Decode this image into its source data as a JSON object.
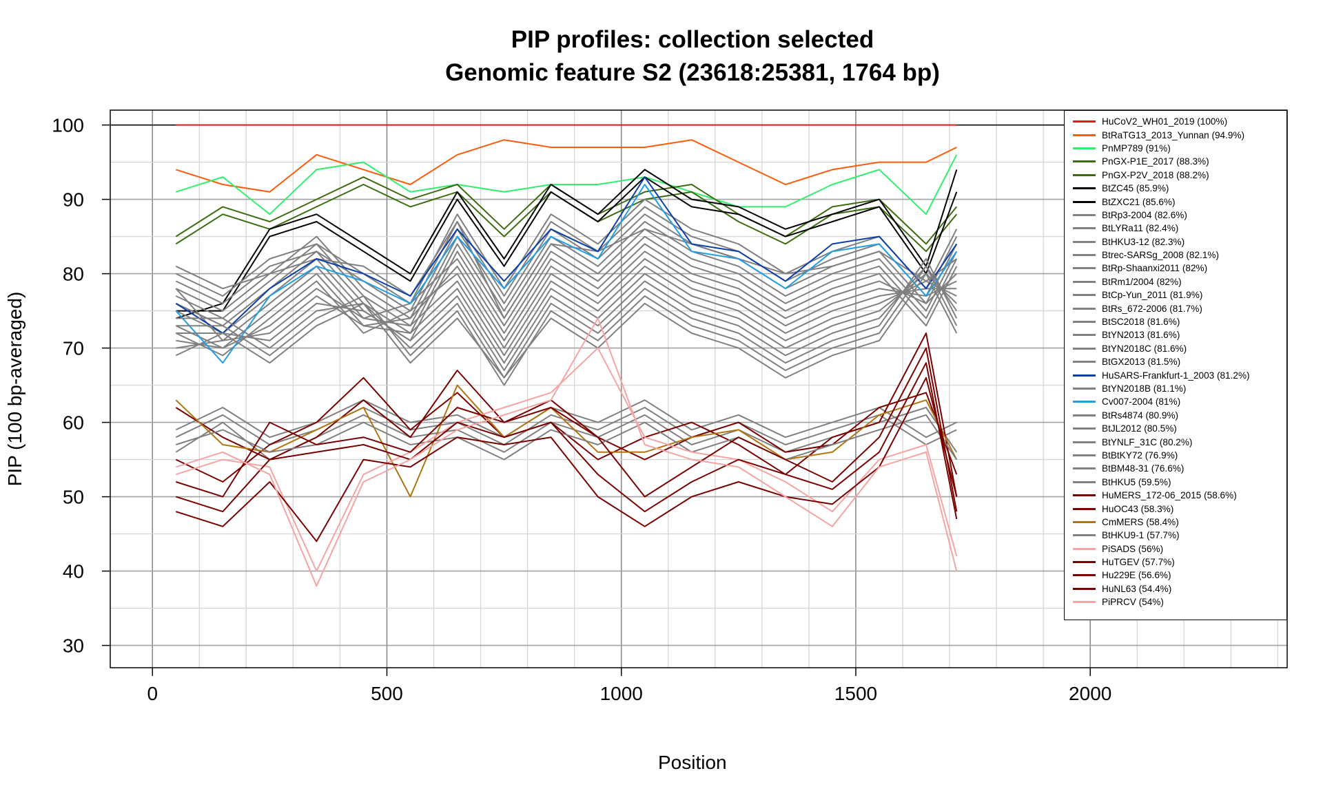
{
  "chart_data": {
    "type": "line",
    "title": "PIP profiles: collection selected",
    "subtitle": "Genomic feature S2 (23618:25381, 1764 bp)",
    "xlabel": "Position",
    "ylabel": "PIP (100 bp-averaged)",
    "xlim": [
      -90,
      2420
    ],
    "ylim": [
      27,
      102
    ],
    "xticks": [
      0,
      500,
      1000,
      1500,
      2000
    ],
    "yticks": [
      30,
      40,
      50,
      60,
      70,
      80,
      90,
      100
    ],
    "grid": true,
    "legend_position": "top-right",
    "x": [
      50,
      150,
      250,
      350,
      450,
      550,
      650,
      750,
      850,
      950,
      1050,
      1150,
      1250,
      1350,
      1450,
      1550,
      1650,
      1715
    ],
    "series": [
      {
        "name": "HuCoV2_WH01_2019 (100%)",
        "color": "#e31a1c",
        "values": [
          100,
          100,
          100,
          100,
          100,
          100,
          100,
          100,
          100,
          100,
          100,
          100,
          100,
          100,
          100,
          100,
          100,
          100
        ]
      },
      {
        "name": "BtRaTG13_2013_Yunnan (94.9%)",
        "color": "#ff5a0a",
        "values": [
          94,
          92,
          91,
          96,
          94,
          92,
          96,
          98,
          97,
          97,
          97,
          98,
          95,
          92,
          94,
          95,
          95,
          97
        ]
      },
      {
        "name": "PnMP789 (91%)",
        "color": "#2ef06b",
        "values": [
          91,
          93,
          88,
          94,
          95,
          91,
          92,
          91,
          92,
          92,
          93,
          91,
          89,
          89,
          92,
          94,
          88,
          96
        ]
      },
      {
        "name": "PnGX-P1E_2017 (88.3%)",
        "color": "#3c6b10",
        "values": [
          85,
          89,
          87,
          90,
          93,
          90,
          92,
          86,
          92,
          88,
          91,
          92,
          88,
          85,
          89,
          90,
          84,
          89
        ]
      },
      {
        "name": "PnGX-P2V_2018 (88.2%)",
        "color": "#3c6b10",
        "values": [
          84,
          88,
          86,
          89,
          92,
          89,
          91,
          85,
          91,
          87,
          90,
          91,
          87,
          84,
          88,
          89,
          83,
          88
        ]
      },
      {
        "name": "BtZC45 (85.9%)",
        "color": "#000000",
        "values": [
          74,
          76,
          86,
          88,
          84,
          80,
          91,
          82,
          92,
          88,
          94,
          90,
          89,
          86,
          88,
          90,
          81,
          94
        ]
      },
      {
        "name": "BtZXC21 (85.6%)",
        "color": "#000000",
        "values": [
          75,
          75,
          85,
          87,
          83,
          79,
          90,
          81,
          91,
          87,
          93,
          89,
          88,
          85,
          87,
          89,
          80,
          91
        ]
      },
      {
        "name": "BtRp3-2004 (82.6%)",
        "color": "#7f7f7f",
        "values": [
          80,
          77,
          82,
          84,
          80,
          76,
          88,
          78,
          88,
          84,
          90,
          86,
          84,
          80,
          83,
          85,
          78,
          86
        ]
      },
      {
        "name": "BtLYRa11 (82.4%)",
        "color": "#7f7f7f",
        "values": [
          79,
          76,
          81,
          83,
          79,
          75,
          87,
          77,
          87,
          83,
          89,
          85,
          83,
          79,
          82,
          84,
          77,
          85
        ]
      },
      {
        "name": "BtHKU3-12 (82.3%)",
        "color": "#7f7f7f",
        "values": [
          78,
          75,
          80,
          85,
          78,
          74,
          86,
          76,
          86,
          82,
          88,
          84,
          82,
          78,
          81,
          83,
          76,
          84
        ]
      },
      {
        "name": "Btrec-SARSg_2008 (82.1%)",
        "color": "#7f7f7f",
        "values": [
          77,
          74,
          79,
          84,
          77,
          73,
          85,
          75,
          85,
          81,
          87,
          83,
          81,
          77,
          80,
          82,
          75,
          83
        ]
      },
      {
        "name": "BtRp-Shaanxi2011 (82%)",
        "color": "#7f7f7f",
        "values": [
          81,
          78,
          80,
          82,
          81,
          77,
          87,
          74,
          84,
          83,
          86,
          84,
          82,
          80,
          81,
          83,
          79,
          82
        ]
      },
      {
        "name": "BtRm1/2004 (82%)",
        "color": "#7f7f7f",
        "values": [
          76,
          73,
          78,
          83,
          76,
          72,
          84,
          74,
          84,
          80,
          86,
          82,
          80,
          76,
          79,
          81,
          74,
          82
        ]
      },
      {
        "name": "BtCp-Yun_2011 (81.9%)",
        "color": "#7f7f7f",
        "values": [
          75,
          72,
          77,
          82,
          75,
          71,
          83,
          73,
          83,
          79,
          85,
          81,
          79,
          75,
          78,
          80,
          73,
          81
        ]
      },
      {
        "name": "BtRs_672-2006 (81.7%)",
        "color": "#7f7f7f",
        "values": [
          78,
          71,
          76,
          81,
          74,
          76,
          82,
          72,
          82,
          78,
          84,
          80,
          78,
          74,
          77,
          79,
          76,
          80
        ]
      },
      {
        "name": "BtSC2018 (81.6%)",
        "color": "#7f7f7f",
        "values": [
          73,
          70,
          75,
          80,
          73,
          74,
          81,
          71,
          81,
          77,
          83,
          79,
          77,
          73,
          76,
          78,
          77,
          79
        ]
      },
      {
        "name": "BtYN2013 (81.6%)",
        "color": "#7f7f7f",
        "values": [
          72,
          69,
          74,
          79,
          72,
          75,
          80,
          70,
          80,
          76,
          82,
          78,
          76,
          72,
          75,
          77,
          78,
          78
        ]
      },
      {
        "name": "BtYN2018C (81.6%)",
        "color": "#7f7f7f",
        "values": [
          71,
          70,
          73,
          78,
          74,
          73,
          79,
          69,
          79,
          75,
          81,
          77,
          75,
          71,
          74,
          76,
          79,
          77
        ]
      },
      {
        "name": "BtGX2013 (81.5%)",
        "color": "#7f7f7f",
        "values": [
          70,
          71,
          72,
          77,
          73,
          72,
          78,
          68,
          78,
          74,
          80,
          76,
          74,
          70,
          73,
          75,
          80,
          76
        ]
      },
      {
        "name": "HuSARS-Frankfurt-1_2003 (81.2%)",
        "color": "#0b3ea8",
        "values": [
          76,
          72,
          78,
          82,
          80,
          77,
          86,
          79,
          86,
          83,
          93,
          84,
          83,
          79,
          84,
          85,
          78,
          84
        ]
      },
      {
        "name": "BtYN2018B (81.1%)",
        "color": "#7f7f7f",
        "values": [
          69,
          72,
          71,
          76,
          75,
          71,
          77,
          67,
          77,
          73,
          79,
          75,
          73,
          69,
          72,
          74,
          81,
          75
        ]
      },
      {
        "name": "Cv007-2004 (81%)",
        "color": "#1f9ee8",
        "values": [
          75,
          68,
          77,
          81,
          79,
          76,
          85,
          78,
          85,
          82,
          92,
          83,
          82,
          78,
          83,
          84,
          77,
          83
        ]
      },
      {
        "name": "BtRs4874 (80.9%)",
        "color": "#7f7f7f",
        "values": [
          74,
          74,
          70,
          75,
          76,
          70,
          76,
          66,
          76,
          72,
          78,
          74,
          72,
          68,
          71,
          73,
          82,
          74
        ]
      },
      {
        "name": "BtJL2012 (80.5%)",
        "color": "#7f7f7f",
        "values": [
          73,
          73,
          69,
          74,
          77,
          69,
          75,
          65,
          75,
          71,
          77,
          73,
          71,
          67,
          70,
          72,
          81,
          73
        ]
      },
      {
        "name": "BtYNLF_31C (80.2%)",
        "color": "#7f7f7f",
        "values": [
          72,
          72,
          68,
          73,
          76,
          68,
          74,
          66,
          74,
          70,
          76,
          72,
          70,
          66,
          69,
          71,
          80,
          72
        ]
      },
      {
        "name": "BtBtKY72 (76.9%)",
        "color": "#7f7f7f",
        "values": [
          59,
          62,
          58,
          60,
          63,
          60,
          61,
          58,
          62,
          60,
          63,
          59,
          61,
          58,
          60,
          62,
          58,
          60
        ]
      },
      {
        "name": "BtBM48-31 (76.6%)",
        "color": "#7f7f7f",
        "values": [
          58,
          61,
          57,
          59,
          62,
          59,
          60,
          57,
          61,
          59,
          62,
          58,
          60,
          57,
          59,
          61,
          57,
          59
        ]
      },
      {
        "name": "BtHKU5 (59.5%)",
        "color": "#7f7f7f",
        "values": [
          56,
          60,
          55,
          58,
          61,
          58,
          59,
          56,
          60,
          58,
          61,
          57,
          59,
          56,
          58,
          60,
          62,
          56
        ]
      },
      {
        "name": "HuMERS_172-06_2015 (58.6%)",
        "color": "#7a0000",
        "values": [
          62,
          58,
          55,
          58,
          63,
          58,
          67,
          60,
          63,
          58,
          55,
          58,
          60,
          56,
          57,
          62,
          64,
          53
        ]
      },
      {
        "name": "HuOC43 (58.3%)",
        "color": "#7a0000",
        "values": [
          55,
          52,
          57,
          60,
          66,
          59,
          64,
          58,
          60,
          55,
          58,
          60,
          57,
          53,
          58,
          60,
          72,
          50
        ]
      },
      {
        "name": "CmMERS (58.4%)",
        "color": "#b07410",
        "values": [
          63,
          57,
          56,
          59,
          62,
          50,
          65,
          58,
          62,
          56,
          56,
          58,
          59,
          55,
          56,
          61,
          63,
          55
        ]
      },
      {
        "name": "BtHKU9-1 (57.7%)",
        "color": "#7f7f7f",
        "values": [
          57,
          59,
          56,
          57,
          60,
          57,
          58,
          55,
          59,
          57,
          60,
          56,
          58,
          55,
          57,
          59,
          61,
          55
        ]
      },
      {
        "name": "PiSADS (56%)",
        "color": "#f5a3a3",
        "values": [
          53,
          55,
          54,
          40,
          53,
          56,
          60,
          62,
          64,
          70,
          58,
          56,
          55,
          52,
          48,
          55,
          57,
          42
        ]
      },
      {
        "name": "HuTGEV (57.7%)",
        "color": "#7a0000",
        "values": [
          52,
          50,
          60,
          57,
          58,
          56,
          62,
          60,
          62,
          58,
          50,
          54,
          58,
          55,
          52,
          58,
          70,
          48
        ]
      },
      {
        "name": "Hu229E (56.6%)",
        "color": "#7a0000",
        "values": [
          50,
          48,
          55,
          56,
          57,
          55,
          60,
          58,
          60,
          53,
          48,
          52,
          55,
          53,
          51,
          56,
          68,
          47
        ]
      },
      {
        "name": "HuNL63 (54.4%)",
        "color": "#7a0000",
        "values": [
          48,
          46,
          52,
          44,
          55,
          54,
          58,
          57,
          58,
          50,
          46,
          50,
          52,
          50,
          49,
          54,
          66,
          50
        ]
      },
      {
        "name": "PiPRCV (54%)",
        "color": "#f5a3a3",
        "values": [
          54,
          56,
          53,
          38,
          52,
          55,
          59,
          61,
          63,
          74,
          57,
          55,
          54,
          50,
          46,
          54,
          56,
          40
        ]
      }
    ]
  }
}
